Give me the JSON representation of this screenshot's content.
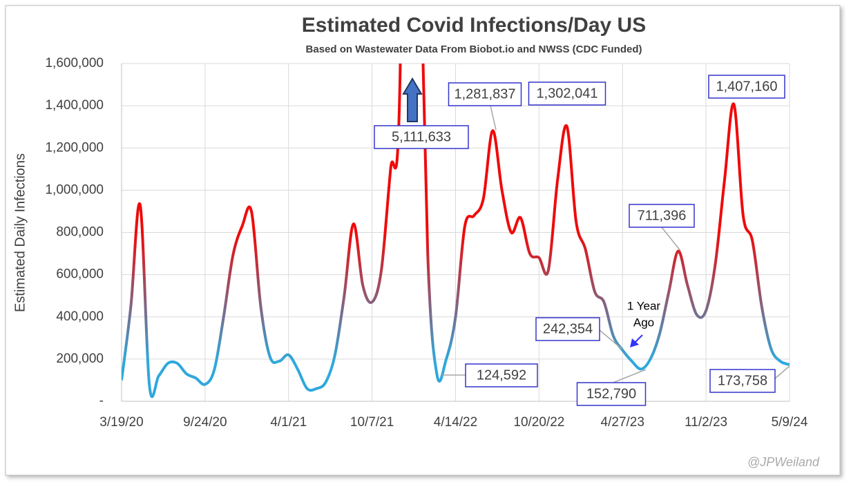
{
  "chart_data": {
    "type": "line",
    "title": "Estimated Covid Infections/Day US",
    "subtitle": "Based on Wastewater Data From Biobot.io and NWSS (CDC Funded)",
    "y_label": "Estimated Daily Infections",
    "categories": [
      "3/19/20",
      null,
      null,
      null,
      null,
      null,
      null,
      null,
      null,
      "9/24/20",
      null,
      null,
      null,
      null,
      null,
      null,
      null,
      null,
      "4/1/21",
      null,
      null,
      null,
      null,
      null,
      null,
      null,
      null,
      "10/7/21",
      null,
      null,
      null,
      null,
      null,
      null,
      null,
      null,
      "4/14/22",
      null,
      null,
      null,
      null,
      null,
      null,
      null,
      null,
      "10/20/22",
      null,
      null,
      null,
      null,
      null,
      null,
      null,
      null,
      "4/27/23",
      null,
      null,
      null,
      null,
      null,
      null,
      null,
      null,
      "11/2/23",
      null,
      null,
      null,
      null,
      null,
      null,
      null,
      null,
      "5/9/24"
    ],
    "values": [
      100000,
      450000,
      930000,
      75000,
      120000,
      180000,
      180000,
      130000,
      110000,
      80000,
      150000,
      400000,
      690000,
      830000,
      900000,
      450000,
      210000,
      190000,
      220000,
      150000,
      60000,
      60000,
      90000,
      220000,
      500000,
      840000,
      550000,
      470000,
      620000,
      1100000,
      1500000,
      5111633,
      2500000,
      700000,
      124592,
      200000,
      400000,
      830000,
      880000,
      960000,
      1281837,
      1000000,
      800000,
      870000,
      700000,
      680000,
      620000,
      1050000,
      1302041,
      850000,
      720000,
      520000,
      470000,
      310000,
      242354,
      190000,
      152790,
      200000,
      320000,
      520000,
      711396,
      550000,
      410000,
      430000,
      650000,
      1050000,
      1407160,
      880000,
      760000,
      450000,
      250000,
      190000,
      173758
    ],
    "value_labels": [
      null,
      null,
      null,
      null,
      null,
      null,
      null,
      null,
      null,
      null,
      null,
      null,
      null,
      null,
      null,
      null,
      null,
      null,
      null,
      null,
      null,
      null,
      null,
      null,
      null,
      null,
      null,
      null,
      null,
      null,
      null,
      "5,111,633",
      null,
      null,
      "124,592",
      null,
      null,
      null,
      null,
      null,
      "1,281,837",
      null,
      null,
      null,
      null,
      null,
      null,
      null,
      "1,302,041",
      null,
      null,
      null,
      null,
      null,
      "242,354",
      null,
      "152,790",
      null,
      null,
      null,
      "711,396",
      null,
      null,
      null,
      null,
      null,
      "1,407,160",
      null,
      null,
      null,
      null,
      null,
      "173,758"
    ],
    "annotation": [
      "1 Year",
      "Ago"
    ],
    "credit": "@JPWeiland",
    "color_high": "#f00a0a",
    "color_low": "#2fa8dc",
    "ylim": [
      0,
      1600000
    ],
    "yticks": [
      {
        "value": 0,
        "label": "-"
      },
      {
        "value": 200000,
        "label": "200,000"
      },
      {
        "value": 400000,
        "label": "400,000"
      },
      {
        "value": 600000,
        "label": "600,000"
      },
      {
        "value": 800000,
        "label": "800,000"
      },
      {
        "value": 1000000,
        "label": "1,000,000"
      },
      {
        "value": 1200000,
        "label": "1,200,000"
      },
      {
        "value": 1400000,
        "label": "1,400,000"
      },
      {
        "value": 1600000,
        "label": "1,600,000"
      }
    ],
    "grid": true
  }
}
